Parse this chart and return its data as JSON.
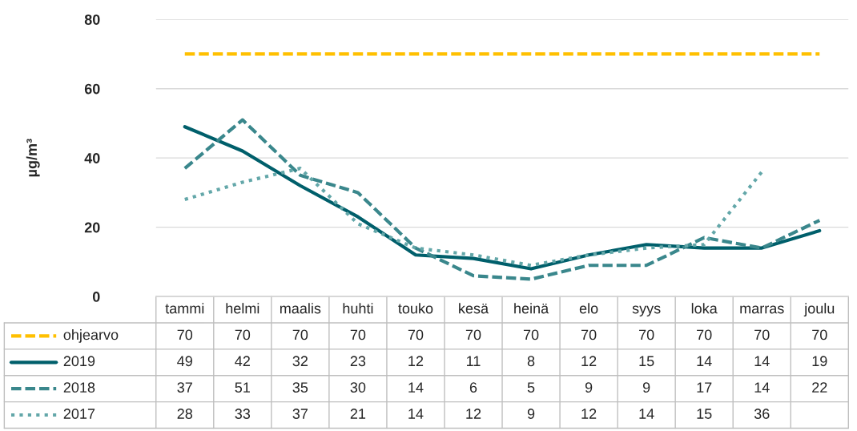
{
  "chart_data": {
    "type": "line",
    "ylabel": "µg/m³",
    "categories": [
      "tammi",
      "helmi",
      "maalis",
      "huhti",
      "touko",
      "kesä",
      "heinä",
      "elo",
      "syys",
      "loka",
      "marras",
      "joulu"
    ],
    "series": [
      {
        "name": "ohjearvo",
        "color": "#ffc000",
        "line_style": "dashed",
        "values": [
          70,
          70,
          70,
          70,
          70,
          70,
          70,
          70,
          70,
          70,
          70,
          70
        ]
      },
      {
        "name": "2019",
        "color": "#005f6b",
        "line_style": "solid",
        "values": [
          49,
          42,
          32,
          23,
          12,
          11,
          8,
          12,
          15,
          14,
          14,
          19
        ]
      },
      {
        "name": "2018",
        "color": "#3a878c",
        "line_style": "dashed",
        "values": [
          37,
          51,
          35,
          30,
          14,
          6,
          5,
          9,
          9,
          17,
          14,
          22
        ]
      },
      {
        "name": "2017",
        "color": "#63a7a9",
        "line_style": "dotted",
        "values": [
          28,
          33,
          37,
          21,
          14,
          12,
          9,
          12,
          14,
          15,
          36,
          null
        ]
      }
    ],
    "ylim": [
      0,
      80
    ],
    "yticks": [
      0,
      20,
      40,
      60,
      80
    ],
    "grid": "y",
    "legend": "bottom left",
    "data_labels": true,
    "marker": "none"
  }
}
